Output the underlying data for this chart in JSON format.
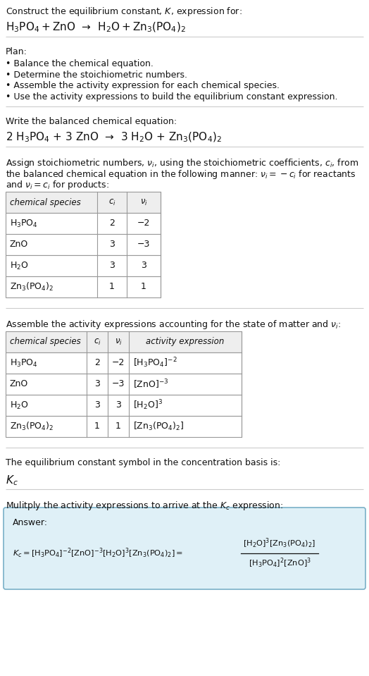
{
  "title_line1": "Construct the equilibrium constant, $K$, expression for:",
  "title_line2": "$\\mathrm{H_3PO_4 + ZnO}$  →  $\\mathrm{H_2O + Zn_3(PO_4)_2}$",
  "plan_header": "Plan:",
  "plan_bullets": [
    "• Balance the chemical equation.",
    "• Determine the stoichiometric numbers.",
    "• Assemble the activity expression for each chemical species.",
    "• Use the activity expressions to build the equilibrium constant expression."
  ],
  "balanced_header": "Write the balanced chemical equation:",
  "balanced_eq": "2 $\\mathrm{H_3PO_4}$ + 3 ZnO  →  3 $\\mathrm{H_2O}$ + $\\mathrm{Zn_3(PO_4)_2}$",
  "stoich_header_1": "Assign stoichiometric numbers, $\\nu_i$, using the stoichiometric coefficients, $c_i$, from",
  "stoich_header_2": "the balanced chemical equation in the following manner: $\\nu_i = -c_i$ for reactants",
  "stoich_header_3": "and $\\nu_i = c_i$ for products:",
  "table1_cols": [
    "chemical species",
    "$c_i$",
    "$\\nu_i$"
  ],
  "table1_rows": [
    [
      "$\\mathrm{H_3PO_4}$",
      "2",
      "−2"
    ],
    [
      "ZnO",
      "3",
      "−3"
    ],
    [
      "$\\mathrm{H_2O}$",
      "3",
      "3"
    ],
    [
      "$\\mathrm{Zn_3(PO_4)_2}$",
      "1",
      "1"
    ]
  ],
  "activity_header": "Assemble the activity expressions accounting for the state of matter and $\\nu_i$:",
  "table2_cols": [
    "chemical species",
    "$c_i$",
    "$\\nu_i$",
    "activity expression"
  ],
  "table2_rows": [
    [
      "$\\mathrm{H_3PO_4}$",
      "2",
      "−2",
      "$[\\mathrm{H_3PO_4}]^{-2}$"
    ],
    [
      "ZnO",
      "3",
      "−3",
      "$[\\mathrm{ZnO}]^{-3}$"
    ],
    [
      "$\\mathrm{H_2O}$",
      "3",
      "3",
      "$[\\mathrm{H_2O}]^3$"
    ],
    [
      "$\\mathrm{Zn_3(PO_4)_2}$",
      "1",
      "1",
      "$[\\mathrm{Zn_3(PO_4)_2}]$"
    ]
  ],
  "kc_text": "The equilibrium constant symbol in the concentration basis is:",
  "kc_symbol": "$K_c$",
  "multiply_text": "Mulitply the activity expressions to arrive at the $K_c$ expression:",
  "answer_label": "Answer:",
  "bg_color": "#ffffff",
  "table_header_bg": "#eeeeee",
  "table_border_color": "#999999",
  "answer_box_bg": "#dff0f7",
  "answer_box_border": "#7ab0c8",
  "separator_color": "#bbbbbb",
  "text_color": "#111111",
  "font_size": 9.0,
  "small_font": 8.5,
  "title_font": 9.5,
  "eq_font": 11.0
}
